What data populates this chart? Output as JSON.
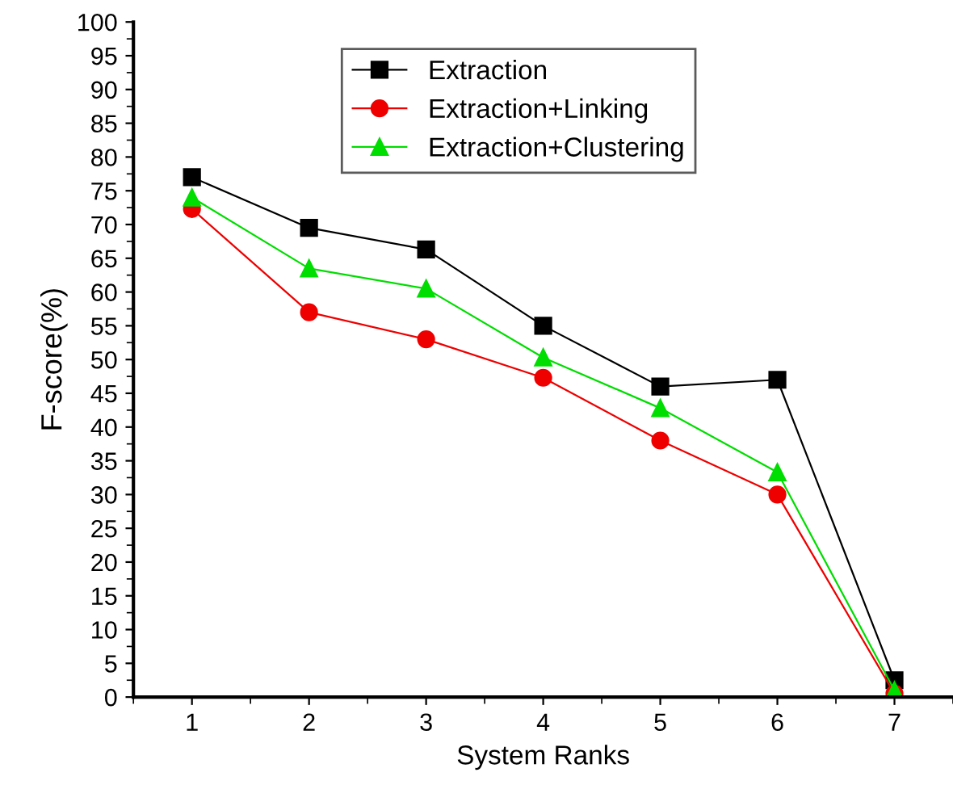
{
  "chart_data": {
    "type": "line",
    "xlabel": "System Ranks",
    "ylabel": "F-score(%)",
    "x": [
      1,
      2,
      3,
      4,
      5,
      6,
      7
    ],
    "xlim": [
      0.5,
      7.5
    ],
    "xticks": [
      1,
      2,
      3,
      4,
      5,
      6,
      7
    ],
    "ylim": [
      0,
      100
    ],
    "yticks": [
      0,
      5,
      10,
      15,
      20,
      25,
      30,
      35,
      40,
      45,
      50,
      55,
      60,
      65,
      70,
      75,
      80,
      85,
      90,
      95,
      100
    ],
    "grid": false,
    "legend": "top",
    "series": [
      {
        "name": "Extraction",
        "color": "#000000",
        "marker": "square",
        "values": [
          77,
          69.5,
          66.3,
          55,
          46,
          47,
          2.5
        ]
      },
      {
        "name": "Extraction+Linking",
        "color": "#ee0000",
        "marker": "circle",
        "values": [
          72.3,
          57,
          53,
          47.3,
          38,
          30,
          0.5
        ]
      },
      {
        "name": "Extraction+Clustering",
        "color": "#00dd00",
        "marker": "triangle",
        "values": [
          74,
          63.5,
          60.5,
          50.3,
          42.8,
          33.3,
          1
        ]
      }
    ]
  }
}
